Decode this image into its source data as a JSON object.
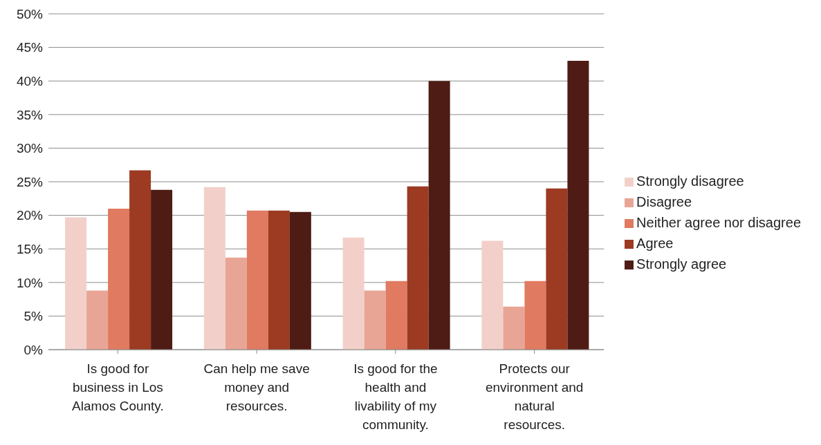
{
  "chart_data": {
    "type": "bar",
    "categories": [
      "Is good for business in Los Alamos County.",
      "Can help me save money and resources.",
      "Is good for the health and livability of my community.",
      "Protects our environment and natural resources."
    ],
    "series": [
      {
        "name": "Strongly disagree",
        "color": "#f2d0c9",
        "values": [
          19.7,
          24.2,
          16.7,
          16.2
        ]
      },
      {
        "name": "Disagree",
        "color": "#e8a595",
        "values": [
          8.8,
          13.7,
          8.8,
          6.4
        ]
      },
      {
        "name": "Neither agree nor disagree",
        "color": "#e07a60",
        "values": [
          21.0,
          20.7,
          10.2,
          10.2
        ]
      },
      {
        "name": "Agree",
        "color": "#9c3a22",
        "values": [
          26.7,
          20.7,
          24.3,
          24.0
        ]
      },
      {
        "name": "Strongly agree",
        "color": "#4e1c14",
        "values": [
          23.8,
          20.5,
          40.0,
          43.0
        ]
      }
    ],
    "ylim": [
      0,
      50
    ],
    "yticks": [
      {
        "value": 0,
        "label": "0%"
      },
      {
        "value": 5,
        "label": "5%"
      },
      {
        "value": 10,
        "label": "10%"
      },
      {
        "value": 15,
        "label": "15%"
      },
      {
        "value": 20,
        "label": "20%"
      },
      {
        "value": 25,
        "label": "25%"
      },
      {
        "value": 30,
        "label": "30%"
      },
      {
        "value": 35,
        "label": "35%"
      },
      {
        "value": 40,
        "label": "40%"
      },
      {
        "value": 45,
        "label": "45%"
      },
      {
        "value": 50,
        "label": "50%"
      }
    ],
    "grid": "y",
    "legend": "right"
  }
}
